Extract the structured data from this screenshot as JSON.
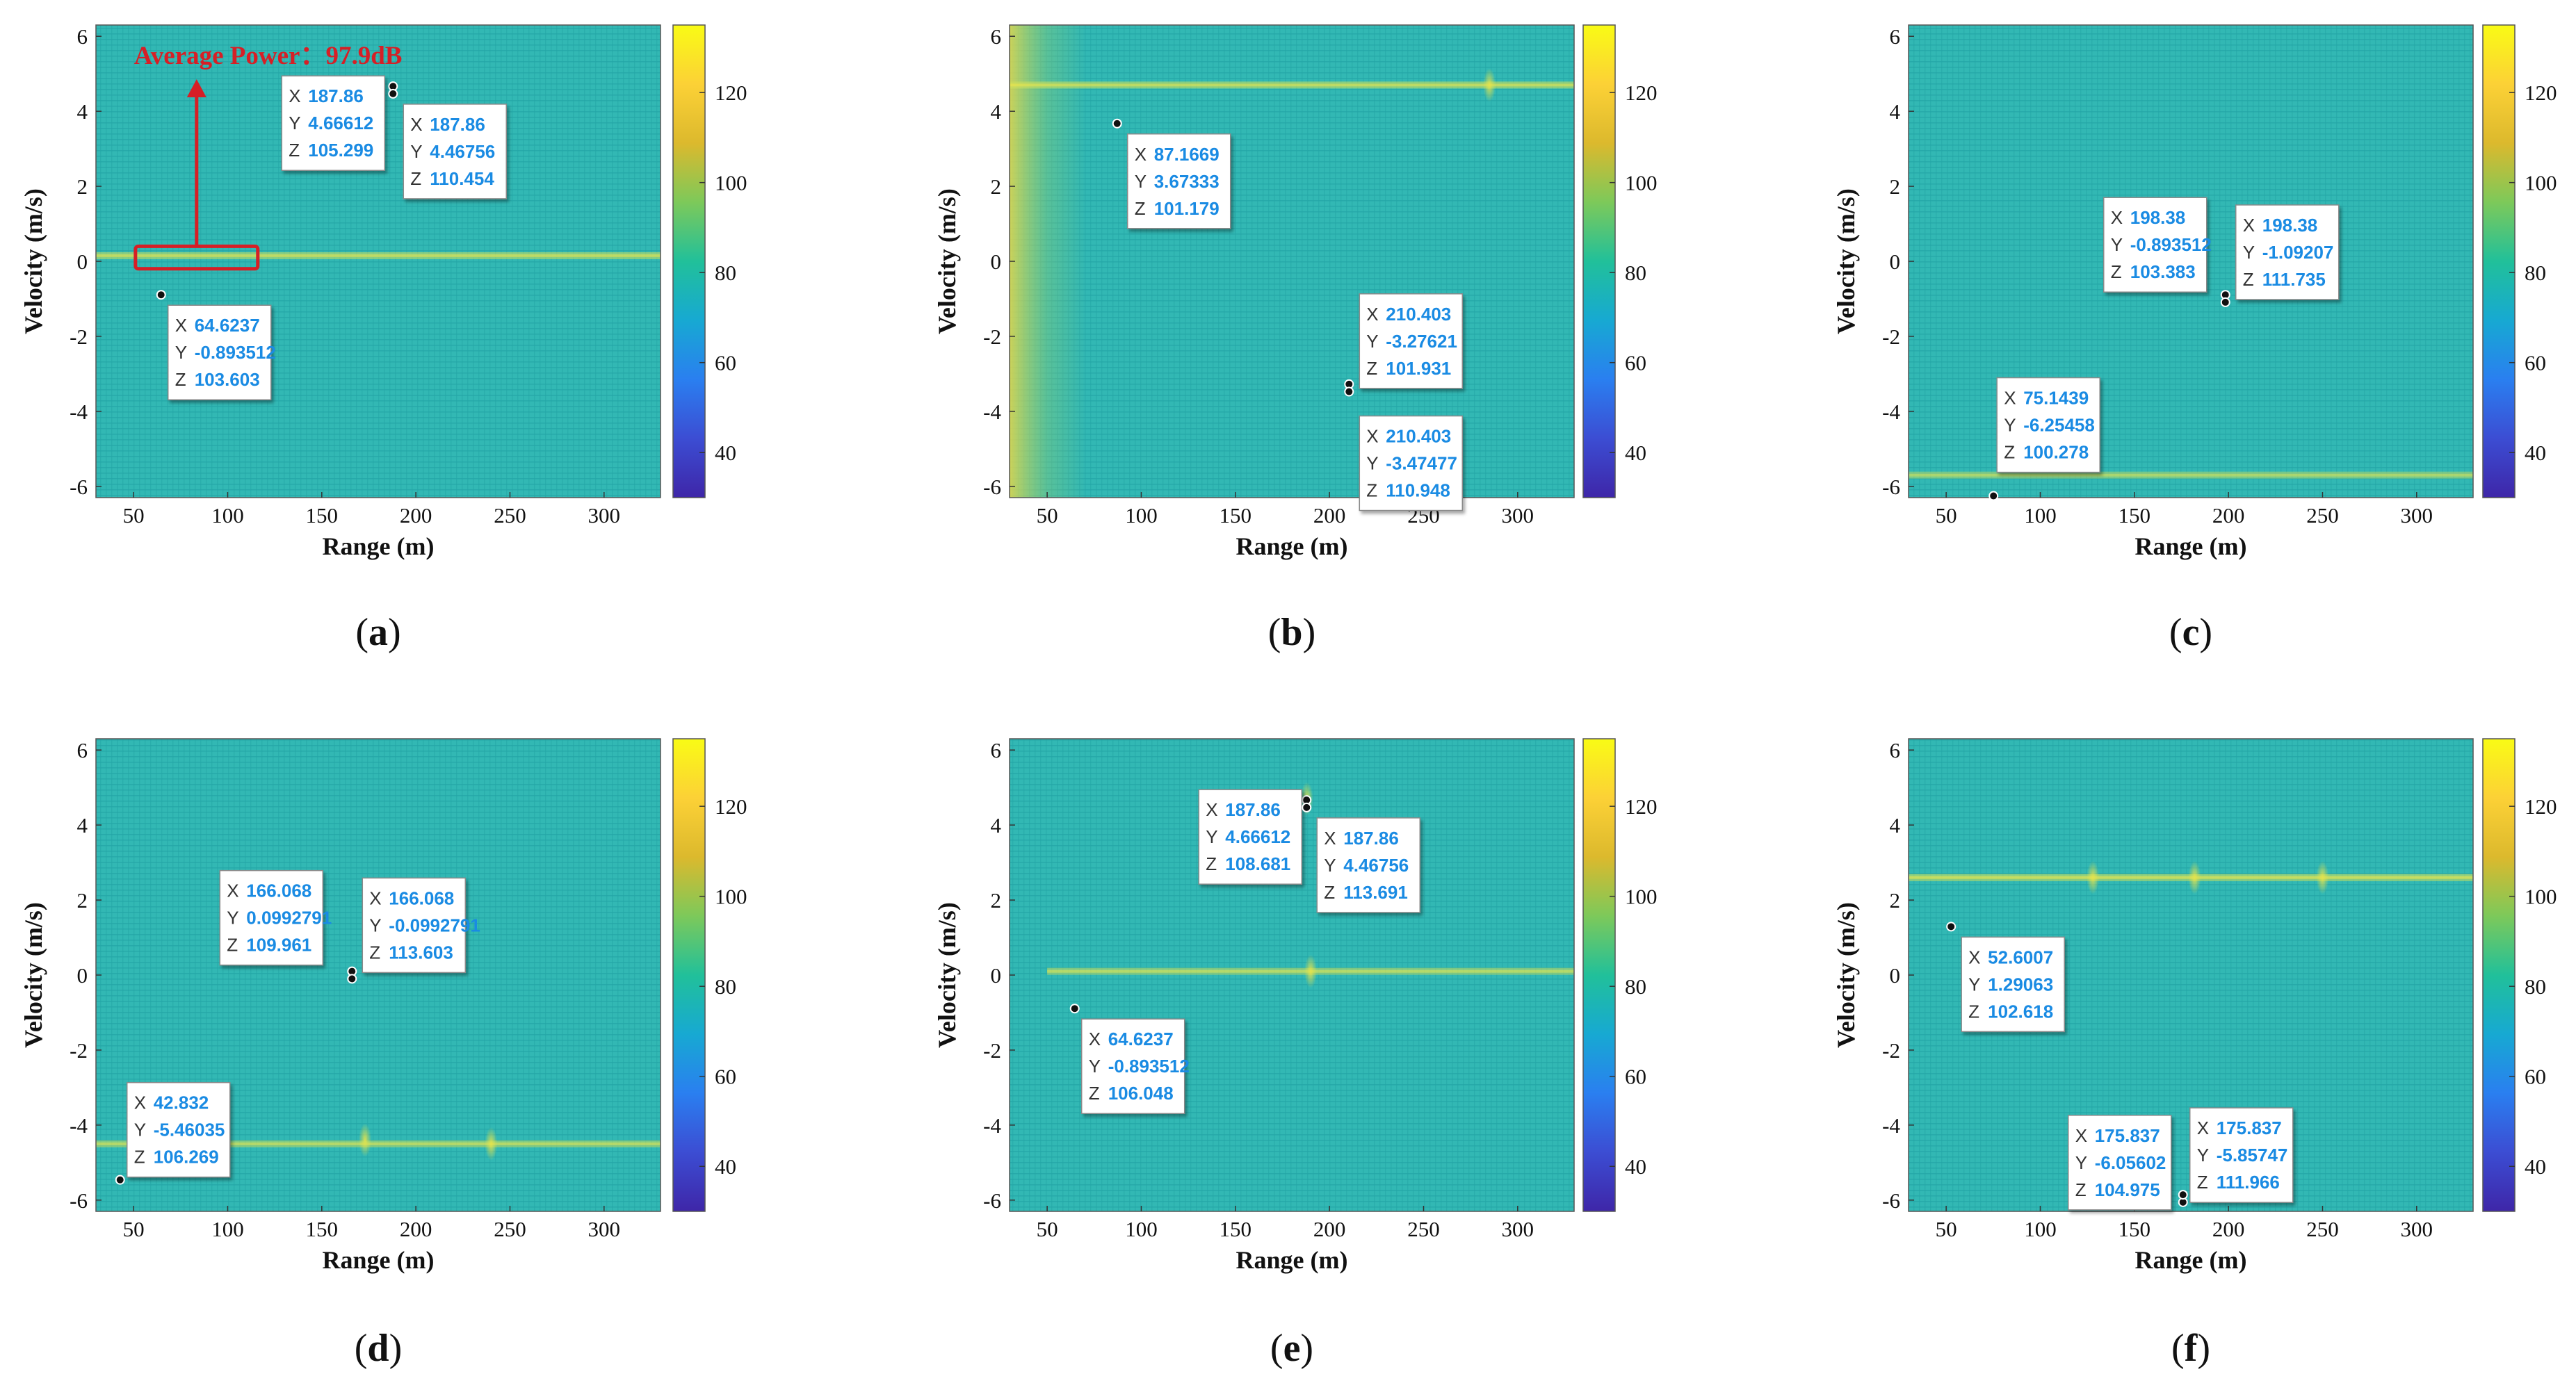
{
  "figure": {
    "colorbar_ticks": [
      "40",
      "60",
      "80",
      "100",
      "120"
    ],
    "colorbar_range": [
      30,
      135
    ],
    "colors": {
      "map_base": "#32b8b4",
      "map_grid": "#23a5a6",
      "colorbar": [
        "#3e26a8",
        "#3c4dd3",
        "#2a7ff0",
        "#17a9d2",
        "#21c09a",
        "#7dc95a",
        "#dcb92d",
        "#fcd136",
        "#f9fb15"
      ],
      "marker": "#111111",
      "tip_value": "#1a8be3",
      "annotation": "#d61f26"
    }
  },
  "chart_data": [
    {
      "type": "heatmap",
      "panel": "a",
      "label": "(a)",
      "xlabel": "Range (m)",
      "ylabel": "Velocity (m/s)",
      "xlim": [
        30,
        330
      ],
      "ylim": [
        -6.3,
        6.3
      ],
      "xticks": [
        "50",
        "100",
        "150",
        "200",
        "250",
        "300"
      ],
      "yticks": [
        "-6",
        "-4",
        "-2",
        "0",
        "2",
        "4",
        "6"
      ],
      "streaks": [
        {
          "y": 0.15,
          "intensity": 0.55,
          "x_from": 30,
          "x_to": 330
        }
      ],
      "blobs": [],
      "markers": [
        {
          "x": 187.86,
          "y": 4.66612
        },
        {
          "x": 187.86,
          "y": 4.46756
        },
        {
          "x": 64.6237,
          "y": -0.893512
        }
      ],
      "tips": [
        {
          "lines": [
            [
              "X",
              "187.86"
            ],
            [
              "Y",
              "4.66612"
            ],
            [
              "Z",
              "105.299"
            ]
          ]
        },
        {
          "lines": [
            [
              "X",
              "187.86"
            ],
            [
              "Y",
              "4.46756"
            ],
            [
              "Z",
              "110.454"
            ]
          ]
        },
        {
          "lines": [
            [
              "X",
              "64.6237"
            ],
            [
              "Y",
              "-0.893512"
            ],
            [
              "Z",
              "103.603"
            ]
          ]
        }
      ],
      "annotation": {
        "text": "Average Power：97.9dB",
        "box": {
          "x1": 51,
          "x2": 116,
          "y1": -0.2,
          "y2": 0.4
        }
      }
    },
    {
      "type": "heatmap",
      "panel": "b",
      "label": "(b)",
      "xlabel": "Range (m)",
      "ylabel": "Velocity (m/s)",
      "xlim": [
        30,
        330
      ],
      "ylim": [
        -6.3,
        6.3
      ],
      "xticks": [
        "50",
        "100",
        "150",
        "200",
        "250",
        "300"
      ],
      "yticks": [
        "-6",
        "-4",
        "-2",
        "0",
        "2",
        "4",
        "6"
      ],
      "streaks": [
        {
          "y": 4.7,
          "intensity": 0.55,
          "x_from": 30,
          "x_to": 330
        }
      ],
      "left_glow": true,
      "blobs": [
        {
          "x": 285,
          "y": 4.7
        }
      ],
      "markers": [
        {
          "x": 87.1669,
          "y": 3.67333
        },
        {
          "x": 210.403,
          "y": -3.27621
        },
        {
          "x": 210.403,
          "y": -3.47477
        }
      ],
      "tips": [
        {
          "lines": [
            [
              "X",
              "87.1669"
            ],
            [
              "Y",
              "3.67333"
            ],
            [
              "Z",
              "101.179"
            ]
          ]
        },
        {
          "lines": [
            [
              "X",
              "210.403"
            ],
            [
              "Y",
              "-3.27621"
            ],
            [
              "Z",
              "101.931"
            ]
          ]
        },
        {
          "lines": [
            [
              "X",
              "210.403"
            ],
            [
              "Y",
              "-3.47477"
            ],
            [
              "Z",
              "110.948"
            ]
          ]
        }
      ]
    },
    {
      "type": "heatmap",
      "panel": "c",
      "label": "(c)",
      "xlabel": "Range (m)",
      "ylabel": "Velocity (m/s)",
      "xlim": [
        30,
        330
      ],
      "ylim": [
        -6.3,
        6.3
      ],
      "xticks": [
        "50",
        "100",
        "150",
        "200",
        "250",
        "300"
      ],
      "yticks": [
        "-6",
        "-4",
        "-2",
        "0",
        "2",
        "4",
        "6"
      ],
      "streaks": [
        {
          "y": -5.7,
          "intensity": 0.45,
          "x_from": 30,
          "x_to": 330
        }
      ],
      "blobs": [],
      "markers": [
        {
          "x": 198.38,
          "y": -0.893512
        },
        {
          "x": 198.38,
          "y": -1.09207
        },
        {
          "x": 75.1439,
          "y": -6.25458
        }
      ],
      "tips": [
        {
          "lines": [
            [
              "X",
              "198.38"
            ],
            [
              "Y",
              "-0.893512"
            ],
            [
              "Z",
              "103.383"
            ]
          ]
        },
        {
          "lines": [
            [
              "X",
              "198.38"
            ],
            [
              "Y",
              "-1.09207"
            ],
            [
              "Z",
              "111.735"
            ]
          ]
        },
        {
          "lines": [
            [
              "X",
              "75.1439"
            ],
            [
              "Y",
              "-6.25458"
            ],
            [
              "Z",
              "100.278"
            ]
          ]
        }
      ]
    },
    {
      "type": "heatmap",
      "panel": "d",
      "label": "(d)",
      "xlabel": "Range (m)",
      "ylabel": "Velocity (m/s)",
      "xlim": [
        30,
        330
      ],
      "ylim": [
        -6.3,
        6.3
      ],
      "xticks": [
        "50",
        "100",
        "150",
        "200",
        "250",
        "300"
      ],
      "yticks": [
        "-6",
        "-4",
        "-2",
        "0",
        "2",
        "4",
        "6"
      ],
      "streaks": [
        {
          "y": -4.5,
          "intensity": 0.5,
          "x_from": 30,
          "x_to": 330
        }
      ],
      "blobs": [
        {
          "x": 173,
          "y": -4.4
        },
        {
          "x": 240,
          "y": -4.5
        }
      ],
      "markers": [
        {
          "x": 166.068,
          "y": 0.0992791
        },
        {
          "x": 166.068,
          "y": -0.0992791
        },
        {
          "x": 42.832,
          "y": -5.46035
        }
      ],
      "tips": [
        {
          "lines": [
            [
              "X",
              "166.068"
            ],
            [
              "Y",
              "0.0992791"
            ],
            [
              "Z",
              "109.961"
            ]
          ]
        },
        {
          "lines": [
            [
              "X",
              "166.068"
            ],
            [
              "Y",
              "-0.0992791"
            ],
            [
              "Z",
              "113.603"
            ]
          ]
        },
        {
          "lines": [
            [
              "X",
              "42.832"
            ],
            [
              "Y",
              "-5.46035"
            ],
            [
              "Z",
              "106.269"
            ]
          ]
        }
      ]
    },
    {
      "type": "heatmap",
      "panel": "e",
      "label": "(e)",
      "xlabel": "Range (m)",
      "ylabel": "Velocity (m/s)",
      "xlim": [
        30,
        330
      ],
      "ylim": [
        -6.3,
        6.3
      ],
      "xticks": [
        "50",
        "100",
        "150",
        "200",
        "250",
        "300"
      ],
      "yticks": [
        "-6",
        "-4",
        "-2",
        "0",
        "2",
        "4",
        "6"
      ],
      "streaks": [
        {
          "y": 0.1,
          "intensity": 0.5,
          "x_from": 50,
          "x_to": 330
        }
      ],
      "blobs": [
        {
          "x": 188,
          "y": 4.7
        },
        {
          "x": 190,
          "y": 0.1
        }
      ],
      "markers": [
        {
          "x": 187.86,
          "y": 4.66612
        },
        {
          "x": 187.86,
          "y": 4.46756
        },
        {
          "x": 64.6237,
          "y": -0.893512
        }
      ],
      "tips": [
        {
          "lines": [
            [
              "X",
              "187.86"
            ],
            [
              "Y",
              "4.66612"
            ],
            [
              "Z",
              "108.681"
            ]
          ]
        },
        {
          "lines": [
            [
              "X",
              "187.86"
            ],
            [
              "Y",
              "4.46756"
            ],
            [
              "Z",
              "113.691"
            ]
          ]
        },
        {
          "lines": [
            [
              "X",
              "64.6237"
            ],
            [
              "Y",
              "-0.893512"
            ],
            [
              "Z",
              "106.048"
            ]
          ]
        }
      ]
    },
    {
      "type": "heatmap",
      "panel": "f",
      "label": "(f)",
      "xlabel": "Range (m)",
      "ylabel": "Velocity (m/s)",
      "xlim": [
        30,
        330
      ],
      "ylim": [
        -6.3,
        6.3
      ],
      "xticks": [
        "50",
        "100",
        "150",
        "200",
        "250",
        "300"
      ],
      "yticks": [
        "-6",
        "-4",
        "-2",
        "0",
        "2",
        "4",
        "6"
      ],
      "streaks": [
        {
          "y": 2.6,
          "intensity": 0.6,
          "x_from": 30,
          "x_to": 330
        }
      ],
      "blobs": [
        {
          "x": 128,
          "y": 2.6
        },
        {
          "x": 182,
          "y": 2.6
        },
        {
          "x": 250,
          "y": 2.6
        }
      ],
      "markers": [
        {
          "x": 52.6007,
          "y": 1.29063
        },
        {
          "x": 175.837,
          "y": -6.05602
        },
        {
          "x": 175.837,
          "y": -5.85747
        }
      ],
      "tips": [
        {
          "lines": [
            [
              "X",
              "52.6007"
            ],
            [
              "Y",
              "1.29063"
            ],
            [
              "Z",
              "102.618"
            ]
          ]
        },
        {
          "lines": [
            [
              "X",
              "175.837"
            ],
            [
              "Y",
              "-6.05602"
            ],
            [
              "Z",
              "104.975"
            ]
          ]
        },
        {
          "lines": [
            [
              "X",
              "175.837"
            ],
            [
              "Y",
              "-5.85747"
            ],
            [
              "Z",
              "111.966"
            ]
          ]
        }
      ]
    }
  ]
}
